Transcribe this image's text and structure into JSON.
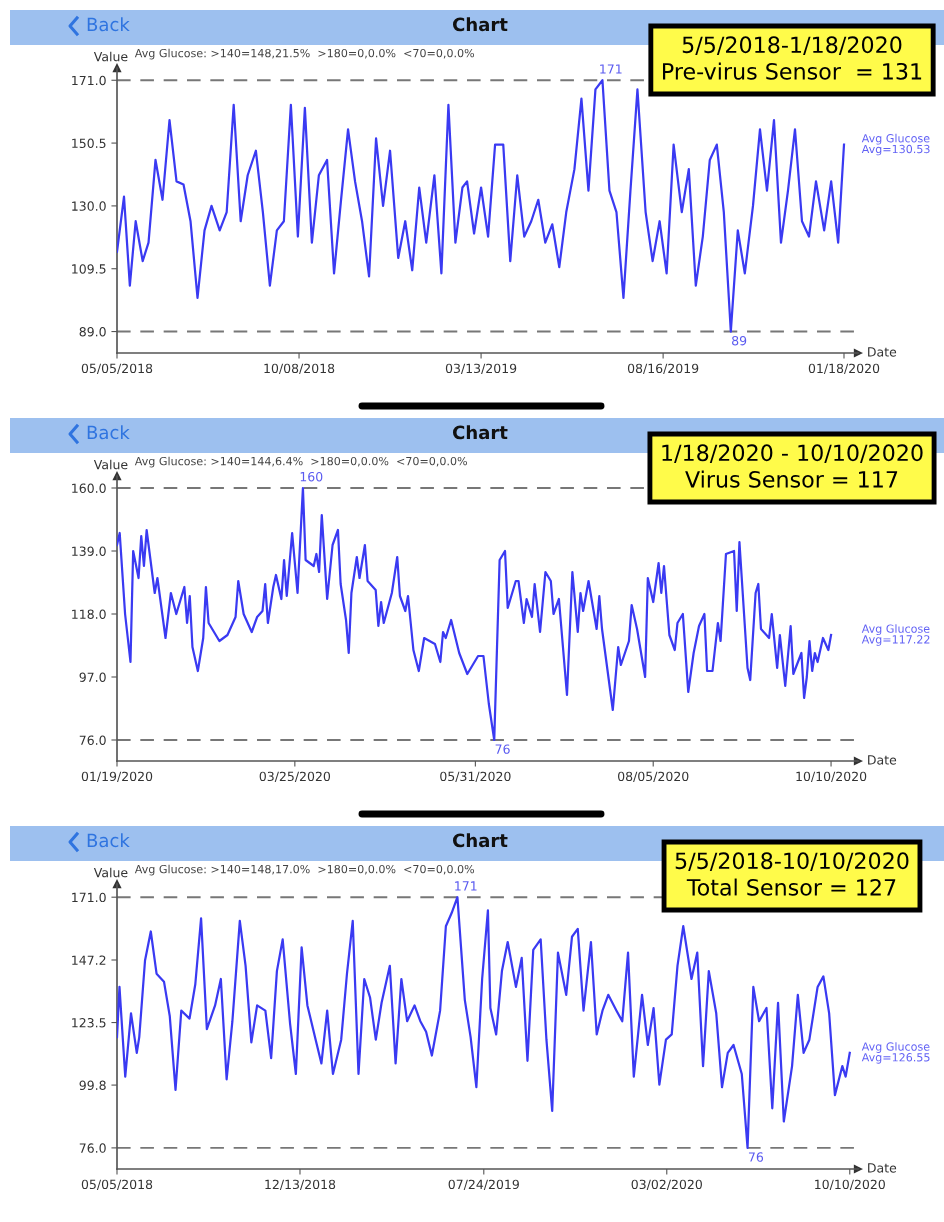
{
  "chart_data": [
    {
      "type": "line",
      "title": "Chart",
      "xlabel": "Date",
      "ylabel": "Value",
      "annotations": [
        "Avg Glucose: >140=148,21.5%  >180=0,0.0%  <70=0,0.0%",
        "5/5/2018-1/18/2020",
        "Pre-virus Sensor  = 131",
        {
          "text": "171",
          "x": "2019-06-25",
          "y": 171
        },
        {
          "text": "89",
          "x": "2019-10-13",
          "y": 89
        },
        "Avg=130.53",
        "Back"
      ],
      "x": [
        "2018-05-05",
        "2018-05-11",
        "2018-05-16",
        "2018-05-21",
        "2018-05-27",
        "2018-06-01",
        "2018-06-07",
        "2018-06-13",
        "2018-06-19",
        "2018-06-25",
        "2018-07-01",
        "2018-07-07",
        "2018-07-13",
        "2018-07-19",
        "2018-07-25",
        "2018-08-01",
        "2018-08-07",
        "2018-08-13",
        "2018-08-19",
        "2018-08-25",
        "2018-09-01",
        "2018-09-07",
        "2018-09-13",
        "2018-09-19",
        "2018-09-25",
        "2018-10-01",
        "2018-10-07",
        "2018-10-13",
        "2018-10-19",
        "2018-10-25",
        "2018-11-01",
        "2018-11-07",
        "2018-11-13",
        "2018-11-19",
        "2018-11-25",
        "2018-12-01",
        "2018-12-07",
        "2018-12-13",
        "2018-12-19",
        "2018-12-25",
        "2019-01-01",
        "2019-01-07",
        "2019-01-13",
        "2019-01-19",
        "2019-01-25",
        "2019-02-01",
        "2019-02-07",
        "2019-02-13",
        "2019-02-19",
        "2019-02-25",
        "2019-03-01",
        "2019-03-07",
        "2019-03-13",
        "2019-03-19",
        "2019-03-25",
        "2019-04-01",
        "2019-04-07",
        "2019-04-13",
        "2019-04-19",
        "2019-04-25",
        "2019-05-01",
        "2019-05-07",
        "2019-05-13",
        "2019-05-19",
        "2019-05-25",
        "2019-06-01",
        "2019-06-07",
        "2019-06-13",
        "2019-06-19",
        "2019-06-25",
        "2019-07-01",
        "2019-07-07",
        "2019-07-13",
        "2019-07-19",
        "2019-07-25",
        "2019-08-01",
        "2019-08-07",
        "2019-08-13",
        "2019-08-19",
        "2019-08-25",
        "2019-09-01",
        "2019-09-07",
        "2019-09-13",
        "2019-09-19",
        "2019-09-25",
        "2019-10-01",
        "2019-10-07",
        "2019-10-13",
        "2019-10-19",
        "2019-10-25",
        "2019-11-01",
        "2019-11-07",
        "2019-11-13",
        "2019-11-19",
        "2019-11-25",
        "2019-12-01",
        "2019-12-07",
        "2019-12-13",
        "2019-12-19",
        "2019-12-25",
        "2020-01-01",
        "2020-01-07",
        "2020-01-13",
        "2020-01-18"
      ],
      "series": [
        {
          "name": "Avg Glucose",
          "color": "#3a3af2",
          "values": [
            115,
            133,
            104,
            125,
            112,
            118,
            145,
            132,
            158,
            138,
            137,
            125,
            100,
            122,
            130,
            122,
            128,
            163,
            125,
            140,
            148,
            128,
            104,
            122,
            125,
            163,
            120,
            162,
            118,
            140,
            145,
            108,
            132,
            155,
            138,
            125,
            107,
            152,
            130,
            148,
            113,
            125,
            109,
            136,
            118,
            140,
            108,
            163,
            118,
            136,
            138,
            121,
            136,
            120,
            150,
            150,
            112,
            140,
            120,
            125,
            132,
            118,
            124,
            110,
            128,
            142,
            165,
            135,
            168,
            171,
            135,
            128,
            100,
            135,
            168,
            128,
            112,
            125,
            108,
            150,
            128,
            142,
            104,
            120,
            145,
            150,
            128,
            89,
            122,
            108,
            130,
            155,
            135,
            158,
            118,
            135,
            155,
            125,
            120,
            138,
            122,
            138,
            118,
            150
          ]
        }
      ],
      "xlim": [
        "2018-05-05",
        "2020-01-30"
      ],
      "xticks": [
        {
          "value": "2018-05-05",
          "label": "05/05/2018"
        },
        {
          "value": "2018-10-08",
          "label": "10/08/2018"
        },
        {
          "value": "2019-03-13",
          "label": "03/13/2019"
        },
        {
          "value": "2019-08-16",
          "label": "08/16/2019"
        },
        {
          "value": "2020-01-18",
          "label": "01/18/2020"
        }
      ],
      "ylim": [
        82,
        175
      ],
      "yticks": [
        {
          "value": 89,
          "label": "89.0"
        },
        {
          "value": 109.5,
          "label": "109.5"
        },
        {
          "value": 130,
          "label": "130.0"
        },
        {
          "value": 150.5,
          "label": "150.5"
        },
        {
          "value": 171,
          "label": "171.0"
        }
      ],
      "ref_lines": [
        {
          "axis": "y",
          "value": 171,
          "color": "#777777",
          "line_style": "dashed"
        },
        {
          "axis": "y",
          "value": 89,
          "color": "#777777",
          "line_style": "dashed"
        }
      ]
    },
    {
      "type": "line",
      "title": "Chart",
      "xlabel": "Date",
      "ylabel": "Value",
      "annotations": [
        "Avg Glucose: >140=144,6.4%  >180=0,0.0%  <70=0,0.0%",
        "1/18/2020 - 10/10/2020",
        "Virus Sensor = 117",
        {
          "text": "160",
          "x": "2020-03-28",
          "y": 160
        },
        {
          "text": "76",
          "x": "2020-06-07",
          "y": 76
        },
        "Avg=117.22",
        "Back"
      ],
      "x": [
        "2020-01-19",
        "2020-01-20",
        "2020-01-22",
        "2020-01-24",
        "2020-01-25",
        "2020-01-27",
        "2020-01-28",
        "2020-01-29",
        "2020-01-30",
        "2020-02-02",
        "2020-02-03",
        "2020-02-06",
        "2020-02-08",
        "2020-02-10",
        "2020-02-13",
        "2020-02-14",
        "2020-02-15",
        "2020-02-16",
        "2020-02-18",
        "2020-02-20",
        "2020-02-21",
        "2020-02-22",
        "2020-02-26",
        "2020-02-29",
        "2020-03-03",
        "2020-03-04",
        "2020-03-06",
        "2020-03-09",
        "2020-03-11",
        "2020-03-13",
        "2020-03-14",
        "2020-03-15",
        "2020-03-17",
        "2020-03-18",
        "2020-03-20",
        "2020-03-21",
        "2020-03-22",
        "2020-03-24",
        "2020-03-26",
        "2020-03-28",
        "2020-03-29",
        "2020-04-01",
        "2020-04-02",
        "2020-04-03",
        "2020-04-04",
        "2020-04-06",
        "2020-04-08",
        "2020-04-10",
        "2020-04-11",
        "2020-04-13",
        "2020-04-14",
        "2020-04-15",
        "2020-04-17",
        "2020-04-18",
        "2020-04-20",
        "2020-04-21",
        "2020-04-24",
        "2020-04-25",
        "2020-04-26",
        "2020-04-27",
        "2020-04-30",
        "2020-05-02",
        "2020-05-03",
        "2020-05-05",
        "2020-05-06",
        "2020-05-08",
        "2020-05-10",
        "2020-05-12",
        "2020-05-16",
        "2020-05-18",
        "2020-05-19",
        "2020-05-20",
        "2020-05-22",
        "2020-05-25",
        "2020-05-28",
        "2020-05-30",
        "2020-06-01",
        "2020-06-03",
        "2020-06-04",
        "2020-06-05",
        "2020-06-07",
        "2020-06-09",
        "2020-06-11",
        "2020-06-12",
        "2020-06-15",
        "2020-06-16",
        "2020-06-18",
        "2020-06-19",
        "2020-06-21",
        "2020-06-22",
        "2020-06-24",
        "2020-06-26",
        "2020-06-28",
        "2020-06-29",
        "2020-07-01",
        "2020-07-04",
        "2020-07-06",
        "2020-07-08",
        "2020-07-09",
        "2020-07-10",
        "2020-07-12",
        "2020-07-15",
        "2020-07-16",
        "2020-07-17",
        "2020-07-21",
        "2020-07-23",
        "2020-07-24",
        "2020-07-27",
        "2020-07-28",
        "2020-07-30",
        "2020-08-02",
        "2020-08-03",
        "2020-08-05",
        "2020-08-07",
        "2020-08-08",
        "2020-08-09",
        "2020-08-11",
        "2020-08-13",
        "2020-08-14",
        "2020-08-16",
        "2020-08-18",
        "2020-08-20",
        "2020-08-22",
        "2020-08-24",
        "2020-08-25",
        "2020-08-27",
        "2020-08-29",
        "2020-08-30",
        "2020-09-01",
        "2020-09-04",
        "2020-09-05",
        "2020-09-06",
        "2020-09-09",
        "2020-09-10",
        "2020-09-12",
        "2020-09-13",
        "2020-09-14",
        "2020-09-17",
        "2020-09-18",
        "2020-09-20",
        "2020-09-21",
        "2020-09-23",
        "2020-09-25",
        "2020-09-26",
        "2020-09-29",
        "2020-09-30",
        "2020-10-01",
        "2020-10-02",
        "2020-10-03",
        "2020-10-04",
        "2020-10-05",
        "2020-10-07",
        "2020-10-09",
        "2020-10-10"
      ],
      "series": [
        {
          "name": "Avg Glucose",
          "color": "#3a3af2",
          "values": [
            141,
            145,
            118,
            102,
            139,
            130,
            144,
            134,
            146,
            125,
            130,
            110,
            125,
            118,
            127,
            115,
            124,
            107,
            99,
            110,
            127,
            115,
            109,
            111,
            117,
            129,
            118,
            112,
            117,
            119,
            128,
            115,
            127,
            131,
            123,
            136,
            124,
            145,
            125,
            160,
            136,
            134,
            138,
            132,
            151,
            123,
            141,
            146,
            128,
            116,
            105,
            125,
            137,
            130,
            141,
            129,
            126,
            114,
            122,
            115,
            125,
            137,
            124,
            119,
            124,
            106,
            99,
            110,
            108,
            102,
            112,
            110,
            116,
            105,
            98,
            101,
            104,
            104,
            96,
            88,
            76,
            136,
            139,
            120,
            129,
            129,
            115,
            123,
            117,
            128,
            112,
            132,
            129,
            118,
            123,
            91,
            132,
            112,
            125,
            119,
            129,
            113,
            124,
            113,
            86,
            107,
            101,
            109,
            121,
            113,
            97,
            130,
            122,
            135,
            125,
            134,
            111,
            106,
            115,
            118,
            92,
            105,
            114,
            118,
            99,
            99,
            115,
            109,
            138,
            139,
            119,
            142,
            100,
            96,
            125,
            128,
            113,
            110,
            118,
            100,
            111,
            94,
            114,
            98,
            105,
            90,
            97,
            109,
            99,
            105,
            102,
            110,
            106,
            111
          ]
        }
      ],
      "xlim": [
        "2020-01-19",
        "2020-10-20"
      ],
      "xticks": [
        {
          "value": "2020-01-19",
          "label": "01/19/2020"
        },
        {
          "value": "2020-03-25",
          "label": "03/25/2020"
        },
        {
          "value": "2020-05-31",
          "label": "05/31/2020"
        },
        {
          "value": "2020-08-05",
          "label": "08/05/2020"
        },
        {
          "value": "2020-10-10",
          "label": "10/10/2020"
        }
      ],
      "ylim": [
        69,
        164
      ],
      "yticks": [
        {
          "value": 76,
          "label": "76.0"
        },
        {
          "value": 97,
          "label": "97.0"
        },
        {
          "value": 118,
          "label": "118.0"
        },
        {
          "value": 139,
          "label": "139.0"
        },
        {
          "value": 160,
          "label": "160.0"
        }
      ],
      "ref_lines": [
        {
          "axis": "y",
          "value": 160,
          "color": "#777777",
          "line_style": "dashed"
        },
        {
          "axis": "y",
          "value": 76,
          "color": "#777777",
          "line_style": "dashed"
        }
      ]
    },
    {
      "type": "line",
      "title": "Chart",
      "xlabel": "Date",
      "ylabel": "Value",
      "annotations": [
        "Avg Glucose: >140=148,17.0%  >180=0,0.0%  <70=0,0.0%",
        "5/5/2018-10/10/2020",
        "Total Sensor = 127",
        {
          "text": "171",
          "x": "2019-06-22",
          "y": 171
        },
        {
          "text": "76",
          "x": "2020-06-08",
          "y": 76
        },
        "Avg=126.55",
        "Back"
      ],
      "x": [
        "2018-05-05",
        "2018-05-08",
        "2018-05-15",
        "2018-05-22",
        "2018-05-29",
        "2018-06-01",
        "2018-06-08",
        "2018-06-15",
        "2018-06-22",
        "2018-07-01",
        "2018-07-08",
        "2018-07-15",
        "2018-07-22",
        "2018-08-01",
        "2018-08-08",
        "2018-08-15",
        "2018-08-22",
        "2018-09-01",
        "2018-09-08",
        "2018-09-15",
        "2018-09-22",
        "2018-10-01",
        "2018-10-08",
        "2018-10-15",
        "2018-10-22",
        "2018-11-01",
        "2018-11-08",
        "2018-11-15",
        "2018-11-22",
        "2018-12-01",
        "2018-12-08",
        "2018-12-15",
        "2018-12-22",
        "2019-01-01",
        "2019-01-08",
        "2019-01-15",
        "2019-01-22",
        "2019-02-01",
        "2019-02-08",
        "2019-02-15",
        "2019-02-22",
        "2019-03-01",
        "2019-03-08",
        "2019-03-15",
        "2019-03-22",
        "2019-04-01",
        "2019-04-08",
        "2019-04-15",
        "2019-04-22",
        "2019-05-01",
        "2019-05-08",
        "2019-05-15",
        "2019-05-22",
        "2019-06-01",
        "2019-06-08",
        "2019-06-15",
        "2019-06-22",
        "2019-07-01",
        "2019-07-08",
        "2019-07-15",
        "2019-07-22",
        "2019-07-29",
        "2019-08-01",
        "2019-08-08",
        "2019-08-15",
        "2019-08-22",
        "2019-09-01",
        "2019-09-08",
        "2019-09-15",
        "2019-09-22",
        "2019-10-01",
        "2019-10-08",
        "2019-10-15",
        "2019-10-22",
        "2019-11-01",
        "2019-11-08",
        "2019-11-15",
        "2019-11-22",
        "2019-12-01",
        "2019-12-08",
        "2019-12-15",
        "2019-12-22",
        "2020-01-01",
        "2020-01-08",
        "2020-01-15",
        "2020-01-22",
        "2020-02-01",
        "2020-02-08",
        "2020-02-15",
        "2020-02-22",
        "2020-03-01",
        "2020-03-08",
        "2020-03-15",
        "2020-03-22",
        "2020-04-01",
        "2020-04-08",
        "2020-04-15",
        "2020-04-22",
        "2020-05-01",
        "2020-05-08",
        "2020-05-15",
        "2020-05-22",
        "2020-06-01",
        "2020-06-08",
        "2020-06-15",
        "2020-06-22",
        "2020-07-01",
        "2020-07-08",
        "2020-07-15",
        "2020-07-22",
        "2020-08-01",
        "2020-08-08",
        "2020-08-15",
        "2020-08-22",
        "2020-09-01",
        "2020-09-08",
        "2020-09-15",
        "2020-09-22",
        "2020-10-01",
        "2020-10-05",
        "2020-10-10"
      ],
      "series": [
        {
          "name": "Avg Glucose",
          "color": "#3a3af2",
          "values": [
            118,
            137,
            103,
            127,
            112,
            118,
            147,
            158,
            142,
            139,
            126,
            98,
            128,
            125,
            138,
            163,
            121,
            130,
            140,
            102,
            124,
            162,
            145,
            116,
            130,
            128,
            110,
            143,
            155,
            123,
            104,
            152,
            130,
            117,
            108,
            128,
            104,
            117,
            142,
            162,
            104,
            140,
            133,
            117,
            131,
            145,
            108,
            140,
            124,
            130,
            124,
            120,
            111,
            128,
            160,
            165,
            171,
            132,
            118,
            99,
            140,
            166,
            129,
            119,
            143,
            154,
            137,
            148,
            109,
            151,
            155,
            117,
            90,
            150,
            134,
            156,
            159,
            128,
            154,
            119,
            128,
            134,
            128,
            124,
            150,
            103,
            134,
            115,
            129,
            100,
            117,
            119,
            145,
            160,
            140,
            150,
            107,
            143,
            127,
            99,
            112,
            115,
            104,
            76,
            137,
            124,
            129,
            91,
            131,
            86,
            107,
            134,
            112,
            117,
            137,
            141,
            127,
            96,
            107,
            103,
            112
          ]
        }
      ],
      "xlim": [
        "2018-05-05",
        "2020-10-20"
      ],
      "xticks": [
        {
          "value": "2018-05-05",
          "label": "05/05/2018"
        },
        {
          "value": "2018-12-13",
          "label": "12/13/2018"
        },
        {
          "value": "2019-07-24",
          "label": "07/24/2019"
        },
        {
          "value": "2020-03-02",
          "label": "03/02/2020"
        },
        {
          "value": "2020-10-10",
          "label": "10/10/2020"
        }
      ],
      "ylim": [
        68,
        176
      ],
      "yticks": [
        {
          "value": 76,
          "label": "76.0"
        },
        {
          "value": 99.8,
          "label": "99.8"
        },
        {
          "value": 123.5,
          "label": "123.5"
        },
        {
          "value": 147.2,
          "label": "147.2"
        },
        {
          "value": 171,
          "label": "171.0"
        }
      ],
      "ref_lines": [
        {
          "axis": "y",
          "value": 171,
          "color": "#777777",
          "line_style": "dashed"
        },
        {
          "axis": "y",
          "value": 76,
          "color": "#777777",
          "line_style": "dashed"
        }
      ]
    }
  ]
}
